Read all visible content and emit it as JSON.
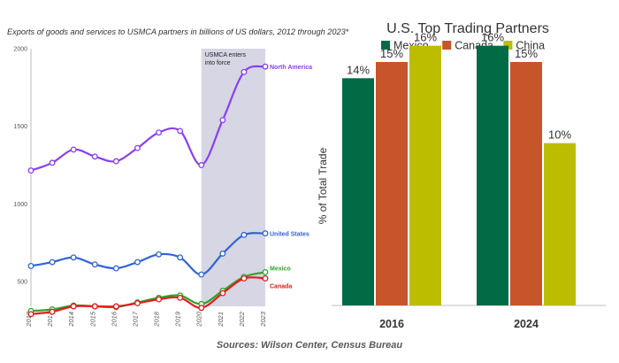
{
  "chart_data": [
    {
      "type": "line",
      "title": "Exports of goods and services to USMCA partners in billions of US dollars, 2012 through 2023*",
      "x": [
        "2012",
        "2013",
        "2014",
        "2015",
        "2016",
        "2017",
        "2018",
        "2019",
        "2020",
        "2021",
        "2022",
        "2023"
      ],
      "yticks": [
        "2000",
        "1500",
        "1000",
        "500"
      ],
      "ylim": [
        340,
        2000
      ],
      "annotation": "USMCA enters into force",
      "annotation_lines": [
        "USMCA enters",
        "into force"
      ],
      "shade_range": [
        "2020",
        "2023"
      ],
      "series": [
        {
          "name": "North America",
          "color": "#8a3ff2",
          "values": [
            1215,
            1265,
            1350,
            1305,
            1275,
            1360,
            1460,
            1470,
            1250,
            1540,
            1850,
            1885
          ]
        },
        {
          "name": "United States",
          "color": "#2f63d6",
          "values": [
            600,
            625,
            655,
            610,
            585,
            625,
            675,
            655,
            545,
            680,
            800,
            810
          ]
        },
        {
          "name": "Mexico",
          "color": "#2ba52b",
          "values": [
            310,
            320,
            345,
            340,
            335,
            365,
            395,
            410,
            355,
            440,
            530,
            560
          ]
        },
        {
          "name": "Canada",
          "color": "#e31c1c",
          "values": [
            290,
            305,
            340,
            340,
            340,
            360,
            385,
            395,
            330,
            425,
            520,
            520
          ]
        }
      ]
    },
    {
      "type": "bar",
      "title": "U.S. Top Trading Partners",
      "categories": [
        "2016",
        "2024"
      ],
      "ylabel": "% of Total Trade",
      "ylim": [
        0,
        18
      ],
      "series": [
        {
          "name": "Mexico",
          "color": "#006b45",
          "values": [
            14,
            16
          ],
          "labels": [
            "14%",
            "16%"
          ]
        },
        {
          "name": "Canada",
          "color": "#c8542a",
          "values": [
            15,
            15
          ],
          "labels": [
            "15%",
            "15%"
          ]
        },
        {
          "name": "China",
          "color": "#bcbd00",
          "values": [
            16,
            10
          ],
          "labels": [
            "16%",
            "10%"
          ]
        }
      ]
    }
  ],
  "source": "Sources: Wilson Center, Census Bureau"
}
